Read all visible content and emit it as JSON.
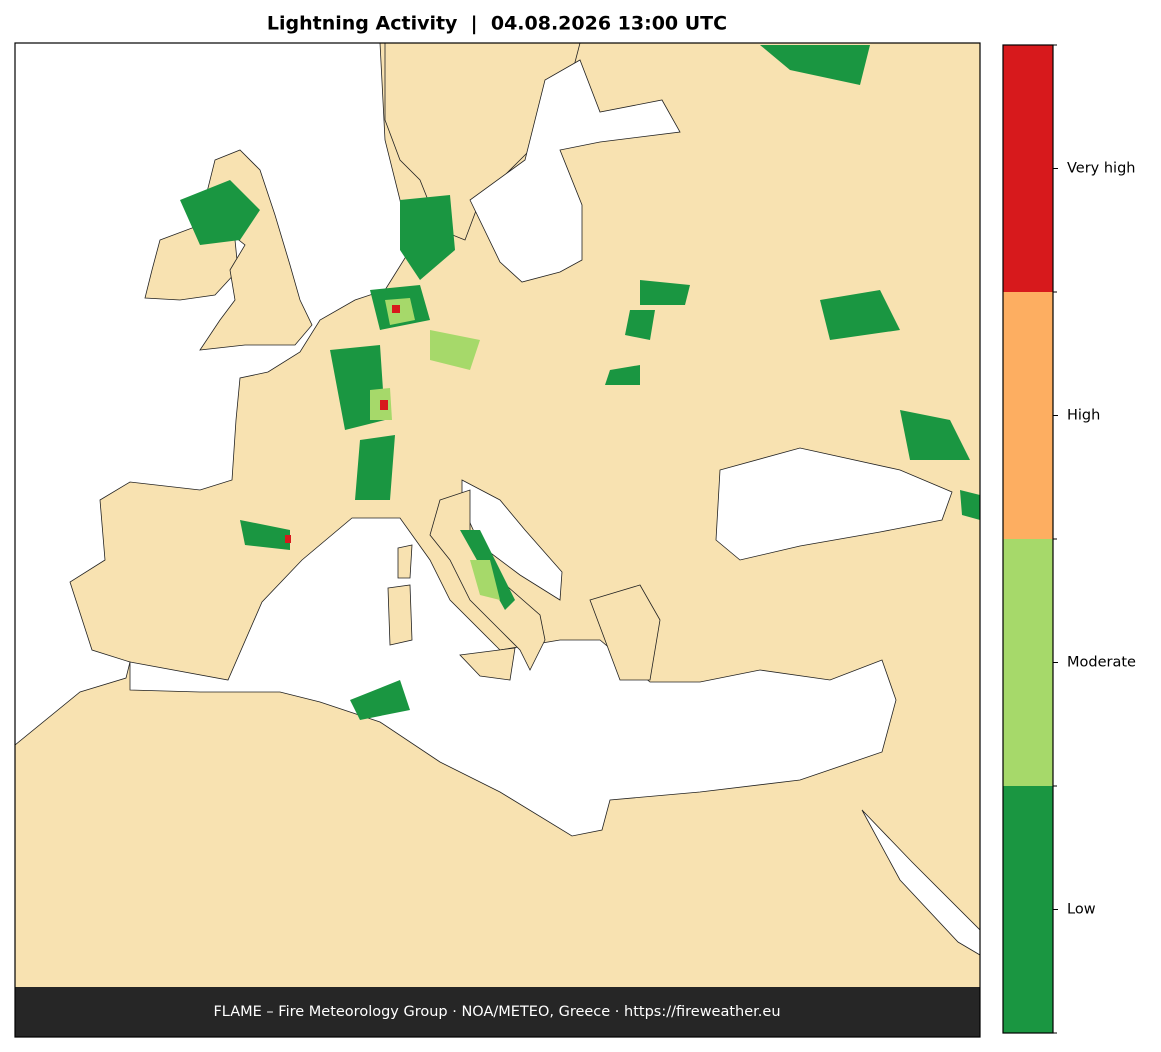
{
  "title": "Lightning Activity  |  04.08.2026 13:00 UTC",
  "footer": "FLAME – Fire Meteorology Group · NOA/METEO, Greece · https://fireweather.eu",
  "legend": [
    {
      "label": "Low",
      "color": "#1a9641"
    },
    {
      "label": "Moderate",
      "color": "#a6d96a"
    },
    {
      "label": "High",
      "color": "#fdae61"
    },
    {
      "label": "Very high",
      "color": "#d7191c"
    }
  ]
}
